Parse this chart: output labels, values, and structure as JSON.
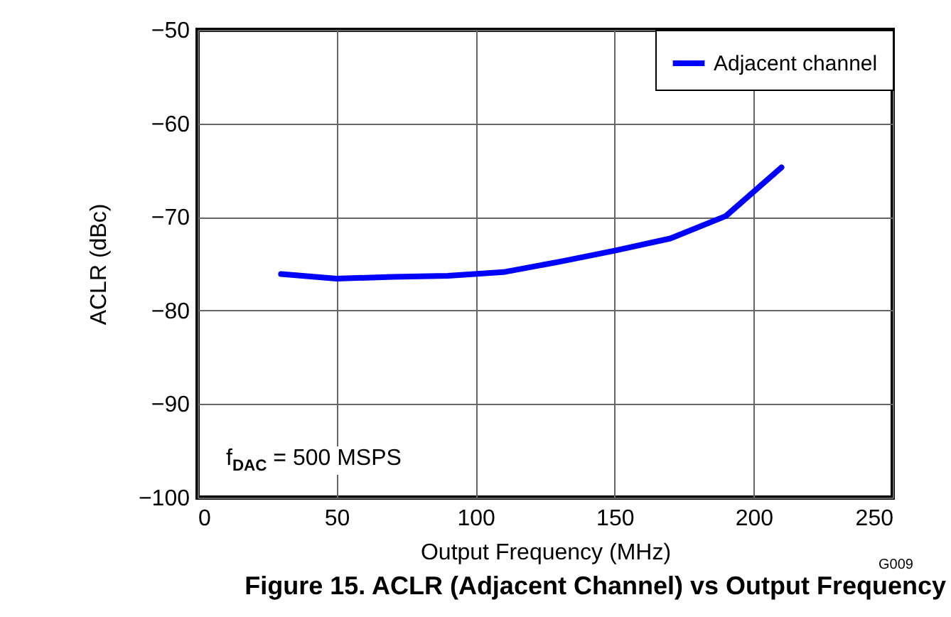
{
  "chart_data": {
    "type": "line",
    "title": "Figure 15. ACLR (Adjacent Channel) vs Output Frequency",
    "xlabel": "Output Frequency (MHz)",
    "ylabel": "ACLR (dBc)",
    "x": [
      30,
      50,
      70,
      90,
      110,
      130,
      150,
      170,
      190,
      210
    ],
    "series": [
      {
        "name": "Adjacent channel",
        "color": "#0000ff",
        "values": [
          -76.1,
          -76.6,
          -76.4,
          -76.3,
          -75.9,
          -74.8,
          -73.6,
          -72.3,
          -69.9,
          -64.7
        ]
      }
    ],
    "xlim": [
      0,
      250
    ],
    "xticks": [
      0,
      50,
      100,
      150,
      200,
      250
    ],
    "ylim": [
      -100,
      -50
    ],
    "yticks": [
      -100,
      -90,
      -80,
      -70,
      -60,
      -50
    ],
    "grid": true,
    "legend": "top right",
    "marker": "none",
    "line_style": "solid",
    "annotations": [
      "f$_{DAC}$ = 500 MSPS",
      "G009"
    ]
  }
}
